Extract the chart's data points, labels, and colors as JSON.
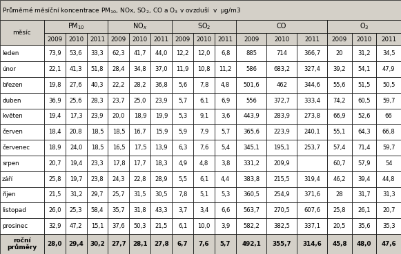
{
  "title": "Průměrné měsíční koncentrace PM$_{10}$, NOx, SO$_2$, CO a O$_3$ v ovzduší  v  μg/m3",
  "title_plain": "Průměrné měsíční koncentrace PM10, NOx, SO2, CO a O3 v ovzduší  v  μg/m3",
  "months": [
    "leden",
    "únor",
    "březen",
    "duben",
    "květen",
    "červen",
    "červenec",
    "srpen",
    "září",
    "říjen",
    "listopad",
    "prosinec"
  ],
  "col_groups": [
    "PM$_{10}$",
    "NO$_x$",
    "SO$_2$",
    "CO",
    "O$_3$"
  ],
  "years": [
    "2009",
    "2010",
    "2011"
  ],
  "data": {
    "PM10": {
      "leden": [
        "73,9",
        "53,6",
        "33,3"
      ],
      "únor": [
        "22,1",
        "41,3",
        "51,8"
      ],
      "březen": [
        "19,8",
        "27,6",
        "40,3"
      ],
      "duben": [
        "36,9",
        "25,6",
        "28,3"
      ],
      "květen": [
        "19,4",
        "17,3",
        "23,9"
      ],
      "červen": [
        "18,4",
        "20,8",
        "18,5"
      ],
      "červenec": [
        "18,9",
        "24,0",
        "18,5"
      ],
      "srpen": [
        "20,7",
        "19,4",
        "23,3"
      ],
      "září": [
        "25,8",
        "19,7",
        "23,8"
      ],
      "říjen": [
        "21,5",
        "31,2",
        "29,7"
      ],
      "listopad": [
        "26,0",
        "25,3",
        "58,4"
      ],
      "prosinec": [
        "32,9",
        "47,2",
        "15,1"
      ],
      "annual": [
        "28,0",
        "29,4",
        "30,2"
      ]
    },
    "NOx": {
      "leden": [
        "62,3",
        "41,7",
        "44,0"
      ],
      "únor": [
        "28,4",
        "34,8",
        "37,0"
      ],
      "březen": [
        "22,2",
        "28,2",
        "36,8"
      ],
      "duben": [
        "23,7",
        "25,0",
        "23,9"
      ],
      "květen": [
        "20,0",
        "18,9",
        "19,9"
      ],
      "červen": [
        "18,5",
        "16,7",
        "15,9"
      ],
      "červenec": [
        "16,5",
        "17,5",
        "13,9"
      ],
      "srpen": [
        "17,8",
        "17,7",
        "18,3"
      ],
      "září": [
        "24,3",
        "22,8",
        "28,9"
      ],
      "říjen": [
        "25,7",
        "31,5",
        "30,5"
      ],
      "listopad": [
        "35,7",
        "31,8",
        "43,3"
      ],
      "prosinec": [
        "37,6",
        "50,3",
        "21,5"
      ],
      "annual": [
        "27,7",
        "28,1",
        "27,8"
      ]
    },
    "SO2": {
      "leden": [
        "12,2",
        "12,0",
        "6,8"
      ],
      "únor": [
        "11,9",
        "10,8",
        "11,2"
      ],
      "březen": [
        "5,6",
        "7,8",
        "4,8"
      ],
      "duben": [
        "5,7",
        "6,1",
        "6,9"
      ],
      "květen": [
        "5,3",
        "9,1",
        "3,6"
      ],
      "červen": [
        "5,9",
        "7,9",
        "5,7"
      ],
      "červenec": [
        "6,3",
        "7,6",
        "5,4"
      ],
      "srpen": [
        "4,9",
        "4,8",
        "3,8"
      ],
      "září": [
        "5,5",
        "6,1",
        "4,4"
      ],
      "říjen": [
        "7,8",
        "5,1",
        "5,3"
      ],
      "listopad": [
        "3,7",
        "3,4",
        "6,6"
      ],
      "prosinec": [
        "6,1",
        "10,0",
        "3,9"
      ],
      "annual": [
        "6,7",
        "7,6",
        "5,7"
      ]
    },
    "CO": {
      "leden": [
        "885",
        "714",
        "366,7"
      ],
      "únor": [
        "586",
        "683,2",
        "327,4"
      ],
      "březen": [
        "501,6",
        "462",
        "344,6"
      ],
      "duben": [
        "556",
        "372,7",
        "333,4"
      ],
      "květen": [
        "443,9",
        "283,9",
        "273,8"
      ],
      "červen": [
        "365,6",
        "223,9",
        "240,1"
      ],
      "červenec": [
        "345,1",
        "195,1",
        "253,7"
      ],
      "srpen": [
        "331,2",
        "209,9",
        ""
      ],
      "září": [
        "383,8",
        "215,5",
        "319,4"
      ],
      "říjen": [
        "360,5",
        "254,9",
        "371,6"
      ],
      "listopad": [
        "563,7",
        "270,5",
        "607,6"
      ],
      "prosinec": [
        "582,2",
        "382,5",
        "337,1"
      ],
      "annual": [
        "492,1",
        "355,7",
        "314,6"
      ]
    },
    "O3": {
      "leden": [
        "20",
        "31,2",
        "34,5"
      ],
      "únor": [
        "39,2",
        "54,1",
        "47,9"
      ],
      "březen": [
        "55,6",
        "51,5",
        "50,5"
      ],
      "duben": [
        "74,2",
        "60,5",
        "59,7"
      ],
      "květen": [
        "66,9",
        "52,6",
        "66"
      ],
      "červen": [
        "55,1",
        "64,3",
        "66,8"
      ],
      "červenec": [
        "57,4",
        "71,4",
        "59,7"
      ],
      "srpen": [
        "60,7",
        "57,9",
        "54"
      ],
      "září": [
        "46,2",
        "39,4",
        "44,8"
      ],
      "říjen": [
        "28",
        "31,7",
        "31,3"
      ],
      "listopad": [
        "25,8",
        "26,1",
        "20,7"
      ],
      "prosinec": [
        "20,5",
        "35,6",
        "35,3"
      ],
      "annual": [
        "45,8",
        "48,0",
        "47,6"
      ]
    }
  },
  "bg_header": "#d4d0c8",
  "bg_white": "#ffffff",
  "border_color": "#000000"
}
